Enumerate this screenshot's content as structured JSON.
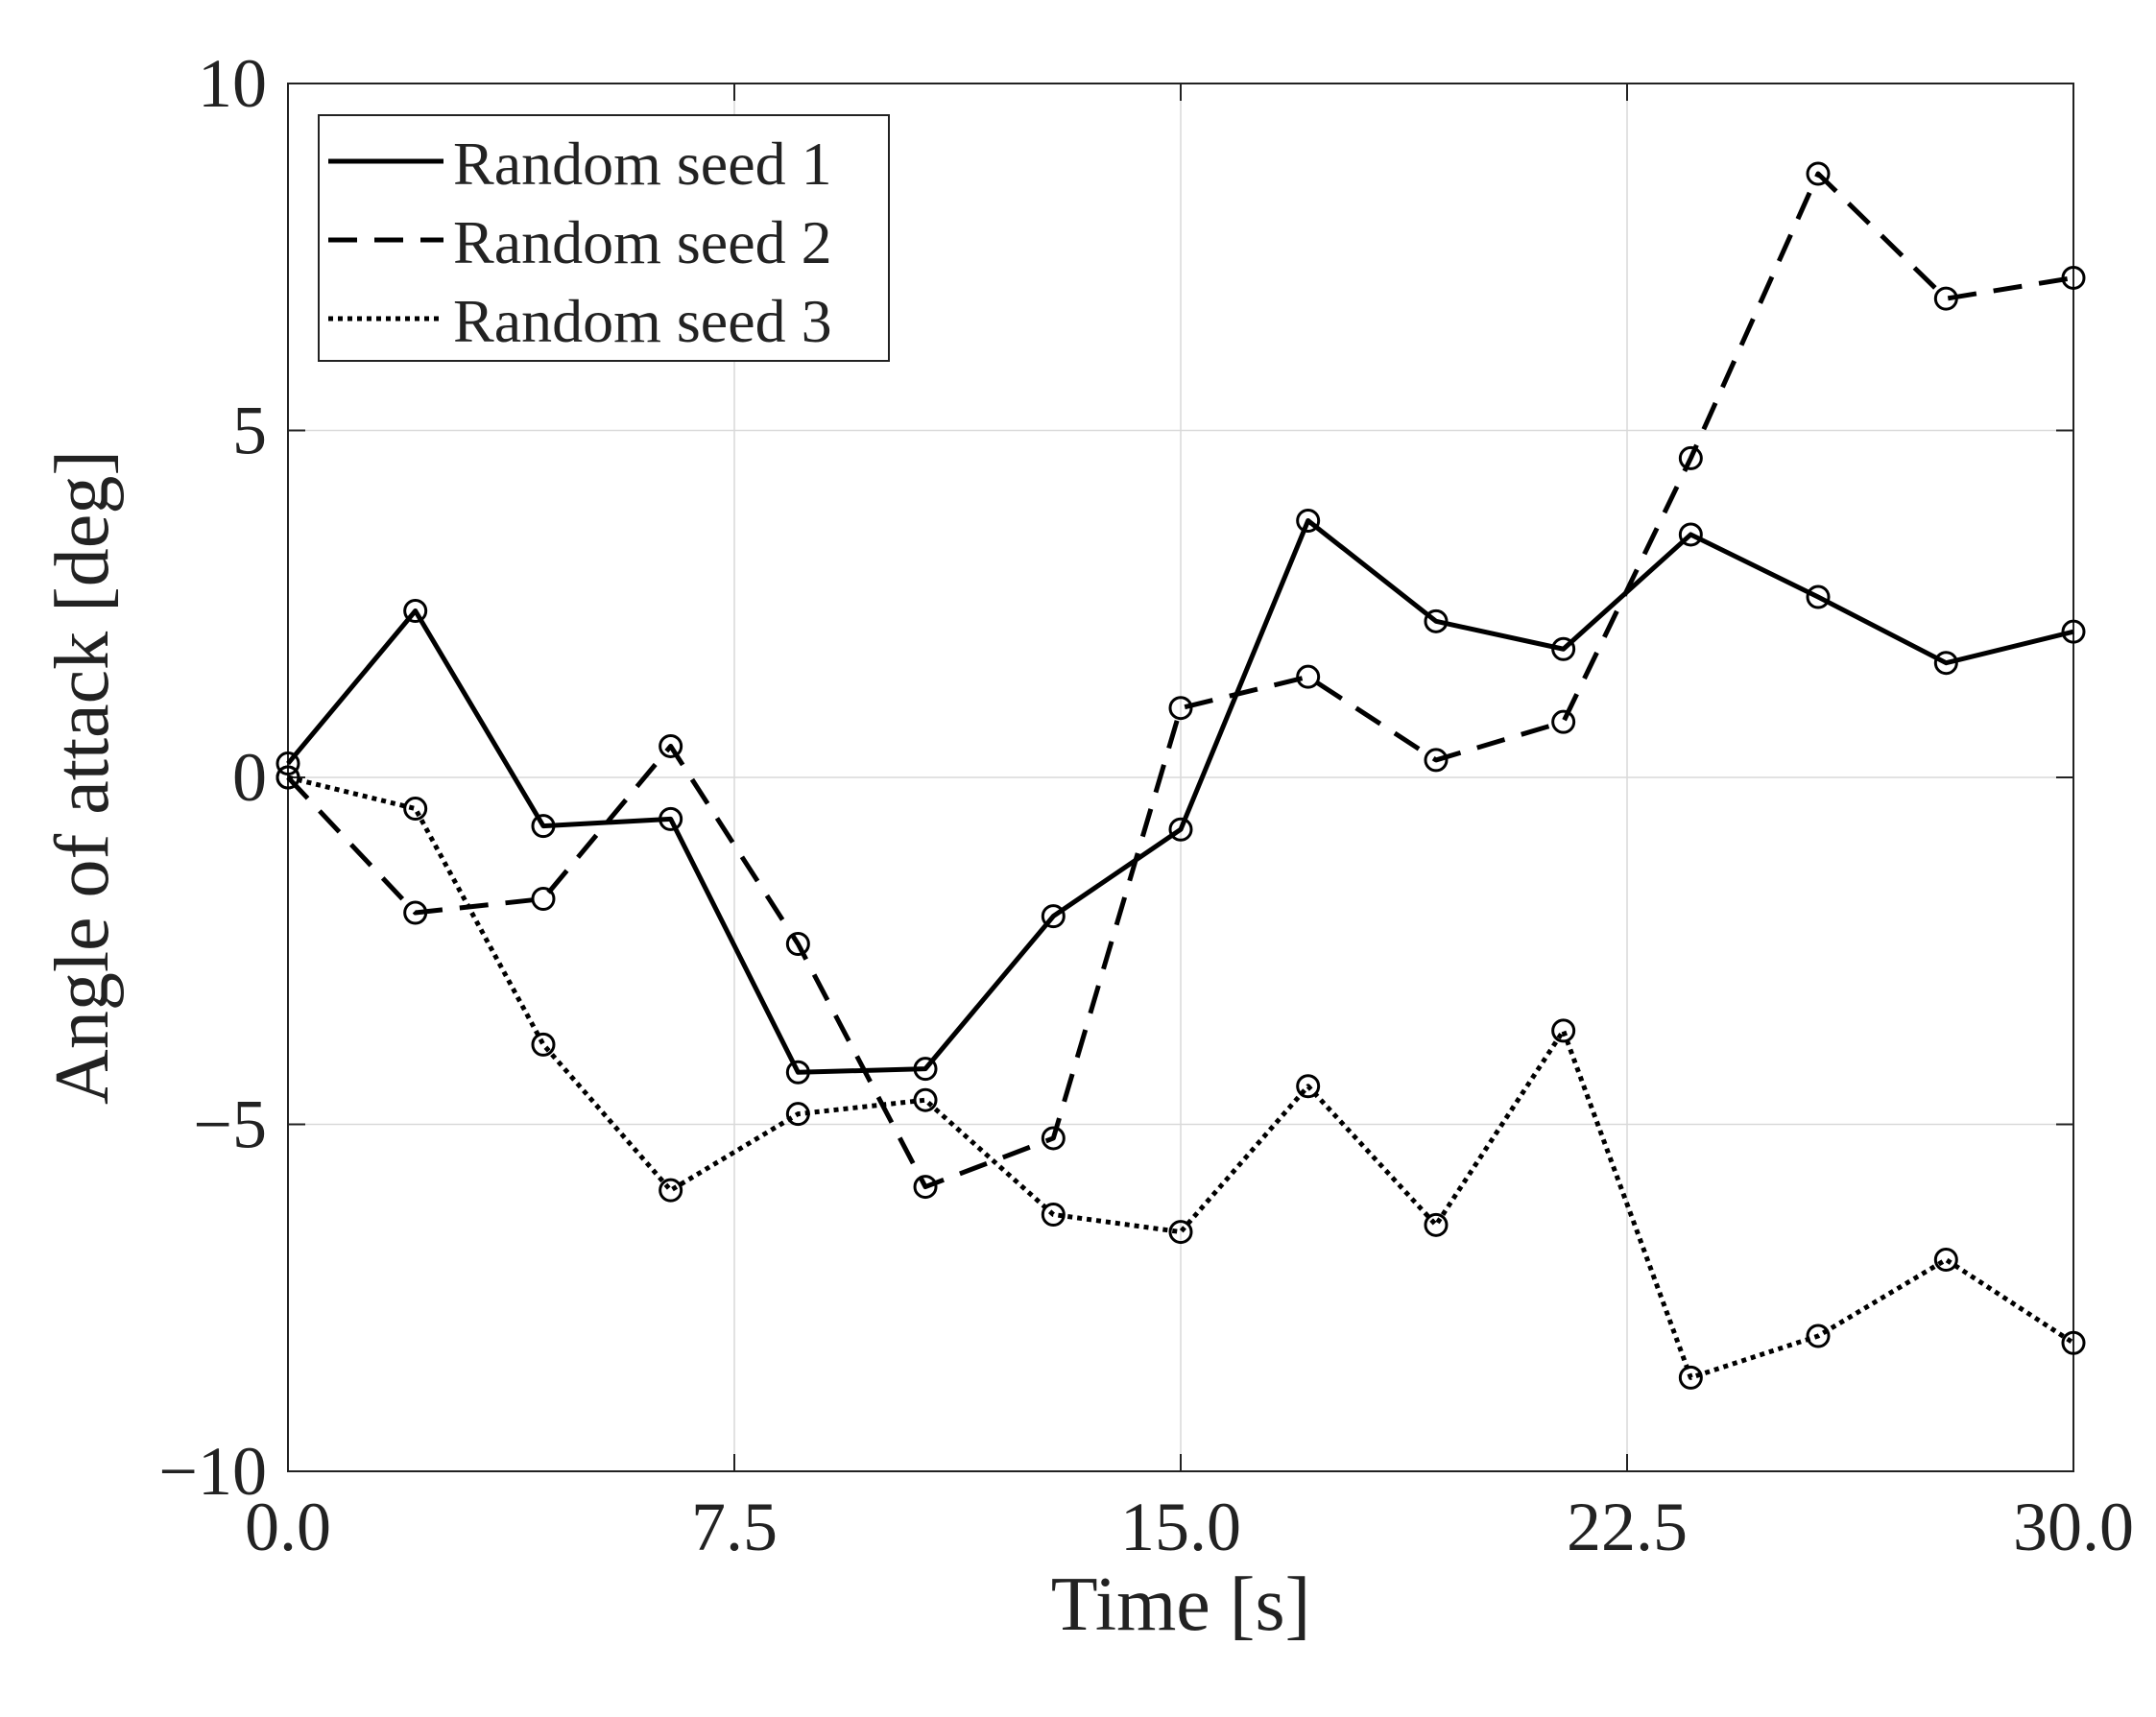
{
  "chart_data": {
    "type": "line",
    "xlabel": "Time [s]",
    "ylabel": "Angle of attack [deg]",
    "xlim": [
      0,
      30
    ],
    "ylim": [
      -10,
      10
    ],
    "xticks": [
      0,
      7.5,
      15,
      22.5,
      30
    ],
    "xtick_labels": [
      "0.0",
      "7.5",
      "15.0",
      "22.5",
      "30.0"
    ],
    "yticks": [
      -10,
      -5,
      0,
      5,
      10
    ],
    "ytick_labels": [
      "−10",
      "−5",
      "0",
      "5",
      "10"
    ],
    "grid": true,
    "legend_position": "top-left",
    "x": [
      0,
      2.14,
      4.29,
      6.43,
      8.57,
      10.71,
      12.86,
      15.0,
      17.14,
      19.29,
      21.43,
      23.57,
      25.71,
      27.86,
      30.0
    ],
    "series": [
      {
        "name": "Random seed 1",
        "style": "solid",
        "values": [
          0.2,
          2.4,
          -0.7,
          -0.6,
          -4.25,
          -4.2,
          -2.0,
          -0.75,
          3.7,
          2.25,
          1.85,
          3.5,
          2.6,
          1.65,
          2.1
        ]
      },
      {
        "name": "Random seed 2",
        "style": "dashed",
        "values": [
          0.0,
          -1.95,
          -1.75,
          0.45,
          -2.4,
          -5.9,
          -5.2,
          1.0,
          1.45,
          0.25,
          0.8,
          4.6,
          8.7,
          6.9,
          7.2
        ]
      },
      {
        "name": "Random seed 3",
        "style": "dotted",
        "values": [
          0.0,
          -0.45,
          -3.85,
          -5.95,
          -4.85,
          -4.65,
          -6.3,
          -6.55,
          -4.45,
          -6.45,
          -3.65,
          -8.65,
          -8.05,
          -6.95,
          -8.15
        ]
      }
    ]
  },
  "colors": {
    "line": "#000000",
    "grid": "#d9d9d9",
    "axes": "#222222",
    "background": "#ffffff"
  }
}
